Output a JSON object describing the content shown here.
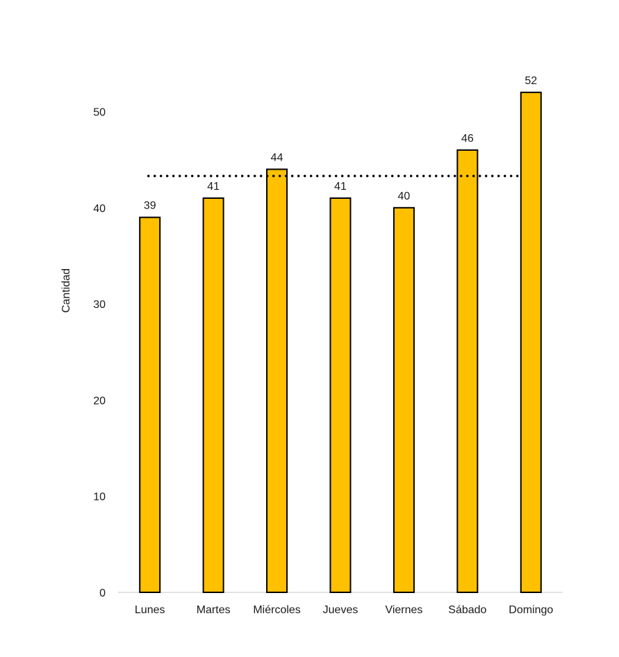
{
  "chart_data": {
    "type": "bar",
    "title": "",
    "xlabel": "",
    "ylabel": "Cantidad",
    "categories": [
      "Lunes",
      "Martes",
      "Miércoles",
      "Jueves",
      "Viernes",
      "Sábado",
      "Domingo"
    ],
    "series": [
      {
        "values": [
          39,
          41,
          44,
          41,
          40,
          46,
          52
        ],
        "color": "#FFC000",
        "stroke": "#000000"
      }
    ],
    "data_labels": [
      "39",
      "41",
      "44",
      "41",
      "40",
      "46",
      "52"
    ],
    "yticks": [
      "0",
      "10",
      "20",
      "30",
      "40",
      "50"
    ],
    "ylim": [
      0,
      55
    ],
    "reference_line": {
      "value": 43.3,
      "style": "dotted",
      "color": "#000000"
    },
    "grid": false,
    "legend": "none"
  }
}
